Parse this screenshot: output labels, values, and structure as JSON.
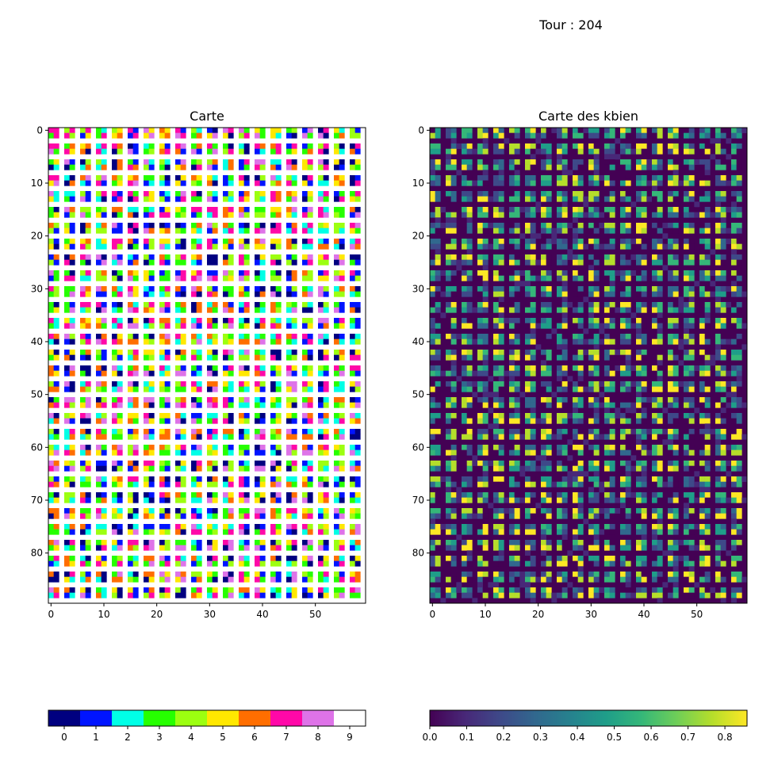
{
  "suptitle": "Tour : 204",
  "chart_data": [
    {
      "type": "heatmap",
      "title": "Carte",
      "rows": 90,
      "cols": 60,
      "value_range": [
        0,
        9
      ],
      "x_ticks": [
        0,
        10,
        20,
        30,
        40,
        50
      ],
      "y_ticks": [
        0,
        10,
        20,
        30,
        40,
        50,
        60,
        70,
        80
      ],
      "grid": false,
      "cell_pattern": "2x2 blocks of coloured cells separated by white (value 9) lines every third row and column",
      "colormap": "discrete",
      "colorbar": {
        "orientation": "horizontal",
        "placement": "bottom",
        "ticks": [
          "0",
          "1",
          "2",
          "3",
          "4",
          "5",
          "6",
          "7",
          "8",
          "9"
        ],
        "colors": [
          "#000080",
          "#0014ff",
          "#00ffe6",
          "#26ff00",
          "#9cff10",
          "#ffe800",
          "#ff6e00",
          "#ff08a8",
          "#de73e8",
          "#ffffff"
        ]
      }
    },
    {
      "type": "heatmap",
      "title": "Carte des kbien",
      "rows": 90,
      "cols": 60,
      "value_range": [
        0.0,
        0.86
      ],
      "x_ticks": [
        0,
        10,
        20,
        30,
        40,
        50
      ],
      "y_ticks": [
        0,
        10,
        20,
        30,
        40,
        50,
        60,
        70,
        80
      ],
      "grid": false,
      "colormap": "viridis",
      "colorbar": {
        "orientation": "horizontal",
        "placement": "bottom",
        "ticks": [
          "0.0",
          "0.1",
          "0.2",
          "0.3",
          "0.4",
          "0.5",
          "0.6",
          "0.7",
          "0.8"
        ],
        "colors": [
          "#440154",
          "#482878",
          "#3e4989",
          "#31688e",
          "#26828e",
          "#1f9e89",
          "#35b779",
          "#6ece58",
          "#b5de2b",
          "#fde725"
        ]
      }
    }
  ]
}
